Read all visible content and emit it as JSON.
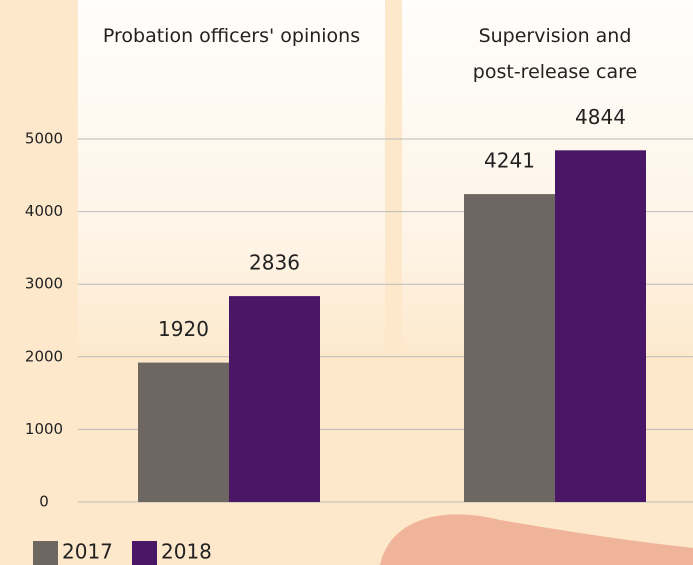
{
  "chart_data": {
    "type": "bar",
    "categories": [
      "Probation officers' opinions",
      "Supervision and post-release care"
    ],
    "series": [
      {
        "name": "2017",
        "color": "#6e6660",
        "values": [
          1920,
          4241
        ]
      },
      {
        "name": "2018",
        "color": "#4a1766",
        "values": [
          2836,
          4844
        ]
      }
    ],
    "ylim": [
      0,
      5000
    ],
    "yticks": [
      0,
      1000,
      2000,
      3000,
      4000,
      5000
    ],
    "grid": true
  }
}
